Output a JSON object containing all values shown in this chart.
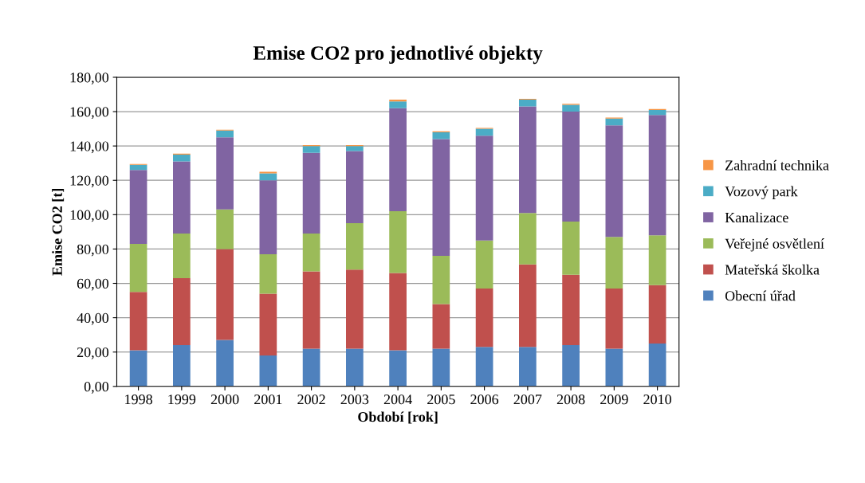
{
  "chart_data": {
    "type": "bar",
    "stacked": true,
    "title": "Emise CO2 pro jednotlivé objekty",
    "xlabel": "Období [rok]",
    "ylabel": "Emise CO2 [t]",
    "categories": [
      "1998",
      "1999",
      "2000",
      "2001",
      "2002",
      "2003",
      "2004",
      "2005",
      "2006",
      "2007",
      "2008",
      "2009",
      "2010"
    ],
    "series": [
      {
        "name": "Obecní úřad",
        "color": "#4f81bd",
        "values": [
          21,
          24,
          27,
          18,
          22,
          22,
          21,
          22,
          23,
          23,
          24,
          22,
          25
        ]
      },
      {
        "name": "Mateřská školka",
        "color": "#c0504d",
        "values": [
          34,
          39,
          53,
          36,
          45,
          46,
          45,
          26,
          34,
          48,
          41,
          35,
          34
        ]
      },
      {
        "name": "Veřejné osvětlení",
        "color": "#9bbb59",
        "values": [
          28,
          26,
          23,
          23,
          22,
          27,
          36,
          28,
          28,
          30,
          31,
          30,
          29
        ]
      },
      {
        "name": "Kanalizace",
        "color": "#8064a2",
        "values": [
          43,
          42,
          42,
          43,
          47,
          42,
          60,
          68,
          61,
          62,
          64,
          65,
          70
        ]
      },
      {
        "name": "Vozový park",
        "color": "#4bacc6",
        "values": [
          3,
          4,
          4,
          4,
          4,
          3,
          4,
          4,
          4,
          4,
          4,
          4,
          3
        ]
      },
      {
        "name": "Zahradní technika",
        "color": "#f79646",
        "values": [
          0.5,
          0.5,
          0.5,
          1,
          0.5,
          0.5,
          1,
          0.5,
          0.5,
          0.5,
          0.5,
          0.5,
          0.5
        ]
      }
    ],
    "ylim": [
      0,
      180
    ],
    "yticks": [
      {
        "value": 0,
        "label": "0,00"
      },
      {
        "value": 20,
        "label": "20,00"
      },
      {
        "value": 40,
        "label": "40,00"
      },
      {
        "value": 60,
        "label": "60,00"
      },
      {
        "value": 80,
        "label": "80,00"
      },
      {
        "value": 100,
        "label": "100,00"
      },
      {
        "value": 120,
        "label": "120,00"
      },
      {
        "value": 140,
        "label": "140,00"
      },
      {
        "value": 160,
        "label": "160,00"
      },
      {
        "value": 180,
        "label": "180,00"
      }
    ],
    "grid": "y",
    "legend": "right"
  }
}
